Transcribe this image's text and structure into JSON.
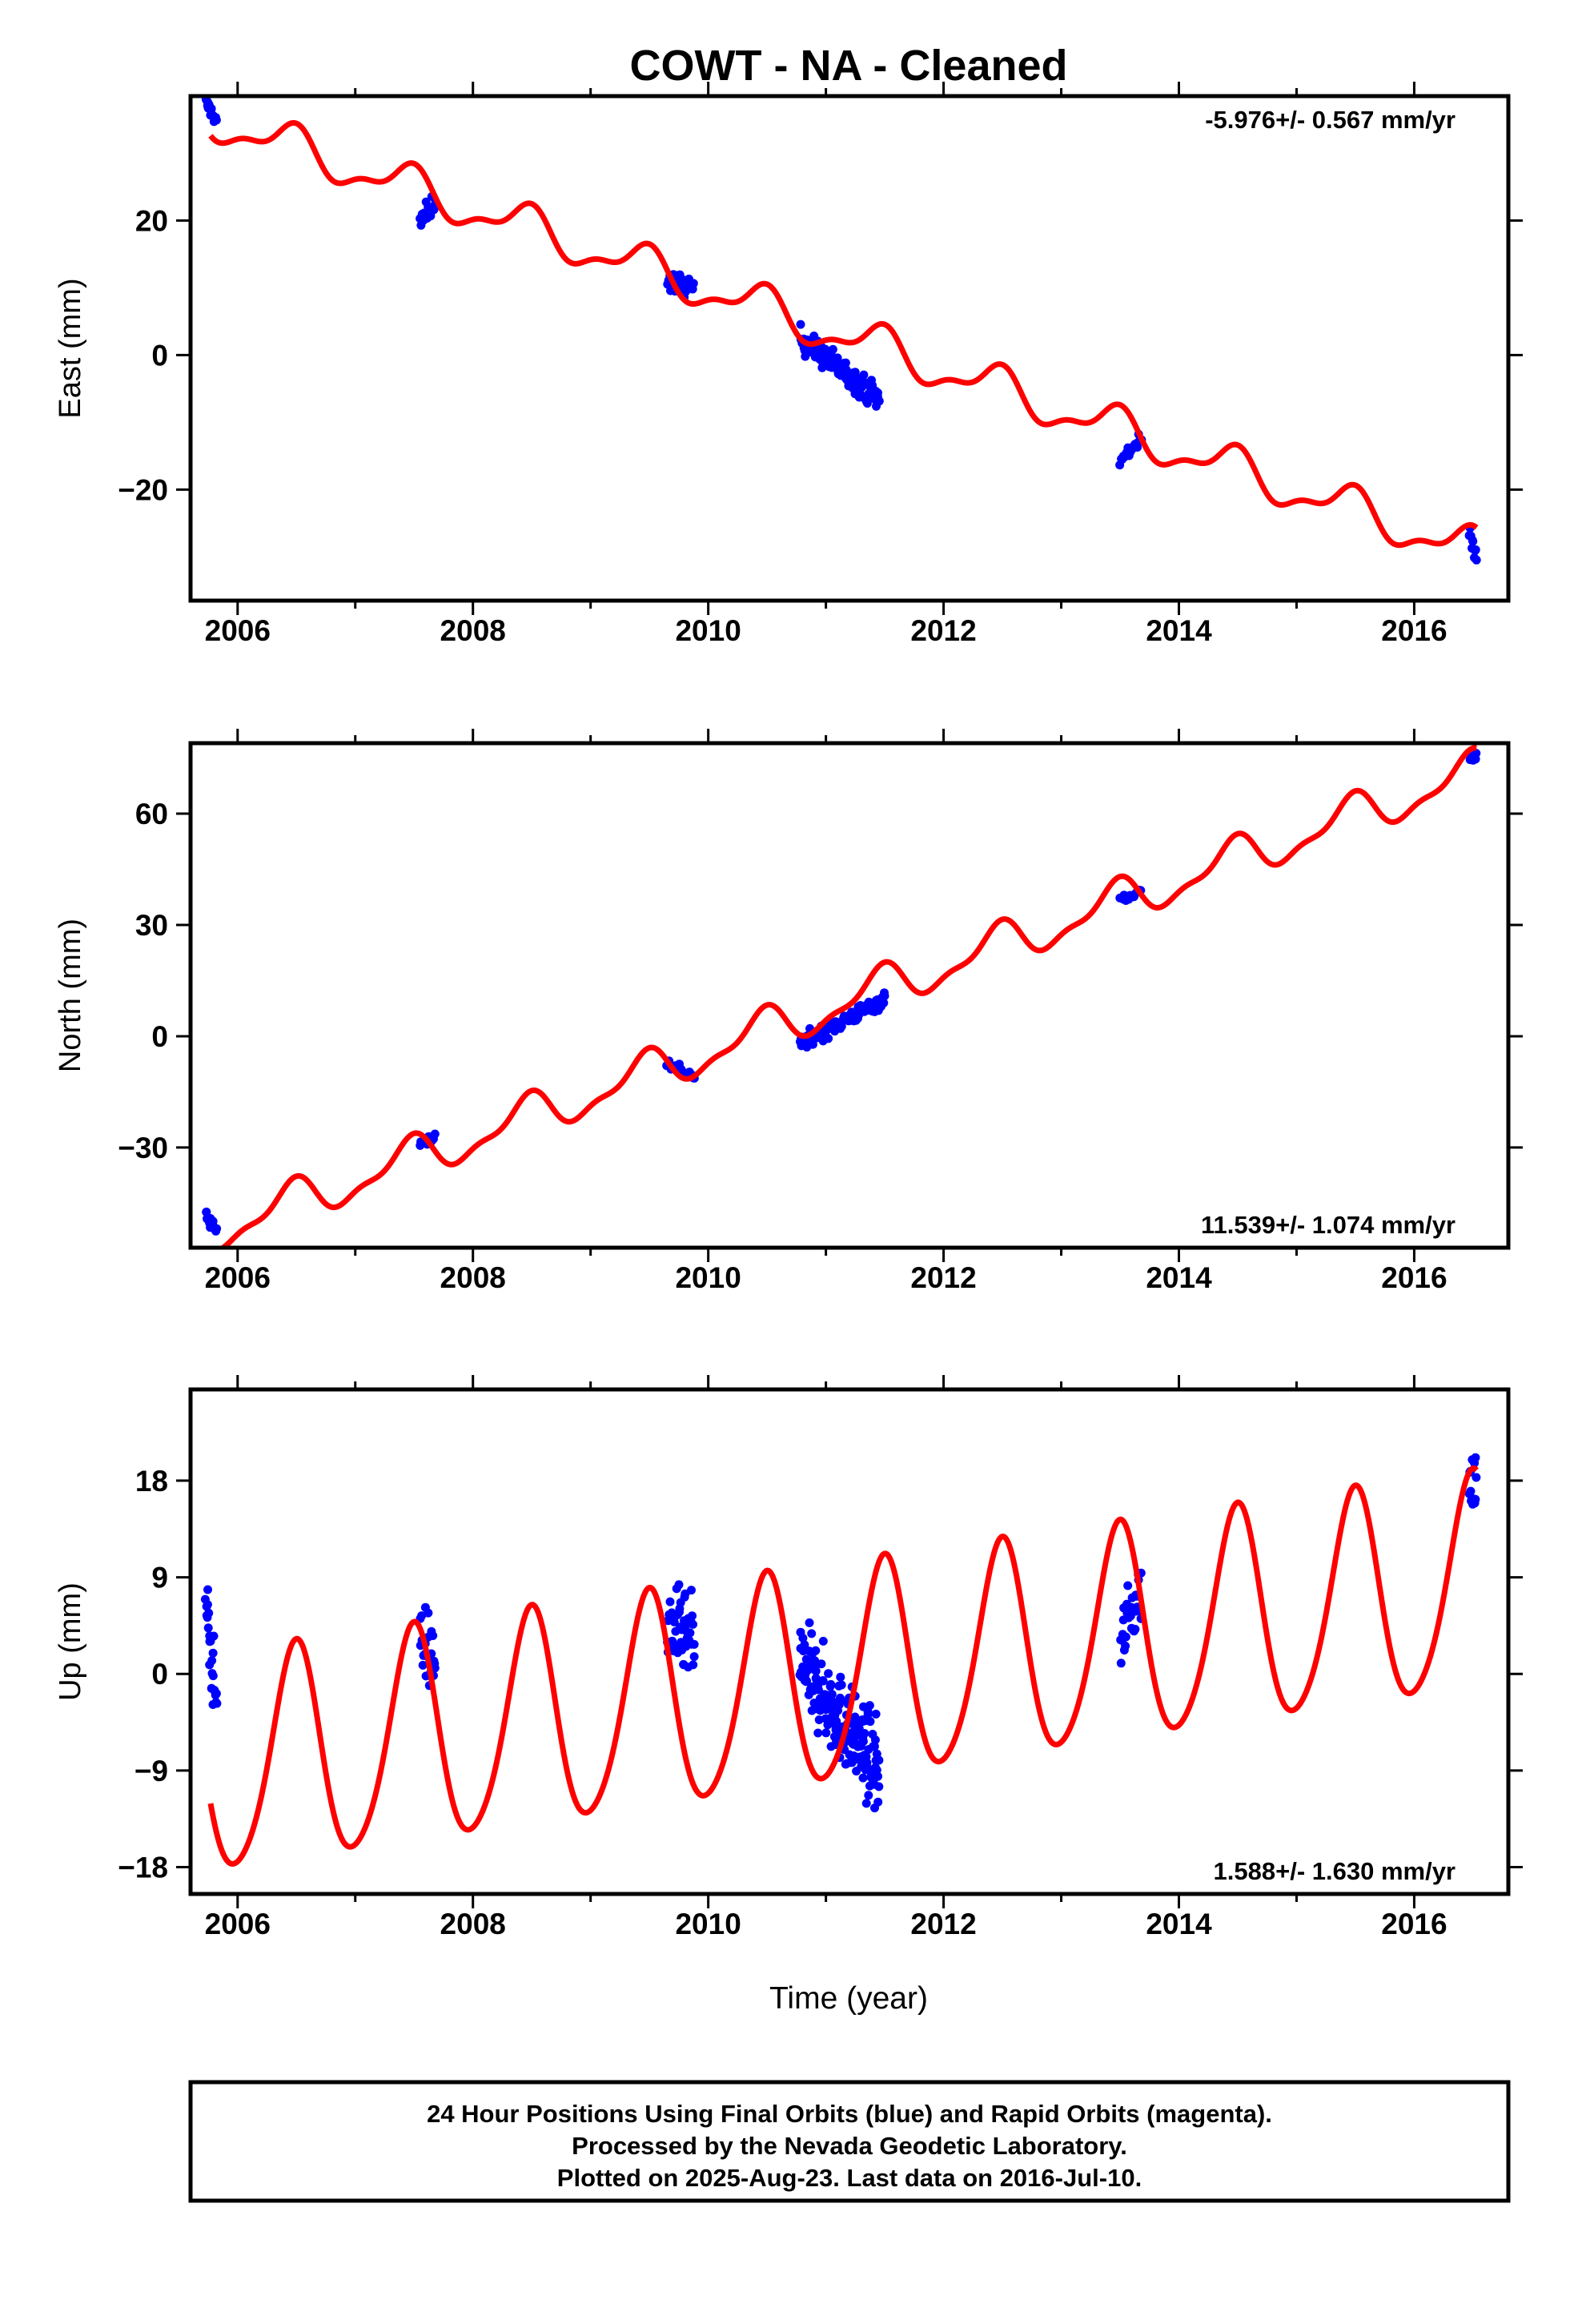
{
  "chart_data": {
    "type": "scatter",
    "title": "COWT  - NA - Cleaned",
    "xlabel": "Time (year)",
    "xlim": [
      2005.6,
      2016.8
    ],
    "x_ticks": [
      "2006",
      "2008",
      "2010",
      "2012",
      "2014",
      "2016"
    ],
    "series_legend": "24 Hour Positions Using Final Orbits (blue) and Rapid Orbits (magenta).",
    "colors": {
      "final_orbits": "#0000ff",
      "model_fit": "#ff0000"
    },
    "panels": [
      {
        "name": "east",
        "ylabel": "East (mm)",
        "ylim": [
          -36.5,
          38.5
        ],
        "y_ticks": [
          "−20",
          "0",
          "20"
        ],
        "rate_label": "-5.976+/- 0.567 mm/yr",
        "rate_position": "top-right",
        "model": {
          "rate": -5.976,
          "intercept": 35.0,
          "t0": 2005.77,
          "amp1": 2.8,
          "phase1": 0.2,
          "amp2": 1.2,
          "phase2": 0.9
        },
        "clusters": [
          {
            "t0": 2005.73,
            "t1": 2005.82,
            "y0": 37.5,
            "y1": 35.0,
            "spread": 1.0,
            "n": 16
          },
          {
            "t0": 2007.55,
            "t1": 2007.68,
            "y0": 19.5,
            "y1": 23.0,
            "spread": 1.6,
            "n": 18
          },
          {
            "t0": 2009.65,
            "t1": 2009.88,
            "y0": 11.0,
            "y1": 10.0,
            "spread": 1.6,
            "n": 30
          },
          {
            "t0": 2010.78,
            "t1": 2011.45,
            "y0": 2.5,
            "y1": -6.5,
            "spread": 1.8,
            "n": 130
          },
          {
            "t0": 2013.5,
            "t1": 2013.68,
            "y0": -16.0,
            "y1": -12.0,
            "spread": 1.3,
            "n": 20
          },
          {
            "t0": 2016.47,
            "t1": 2016.53,
            "y0": -27.0,
            "y1": -30.0,
            "spread": 1.5,
            "n": 10
          }
        ]
      },
      {
        "name": "north",
        "ylabel": "North (mm)",
        "ylim": [
          -57,
          79
        ],
        "y_ticks": [
          "−30",
          "0",
          "30",
          "60"
        ],
        "rate_label": "11.539+/- 1.074 mm/yr",
        "rate_position": "bottom-right",
        "model": {
          "rate": 11.539,
          "intercept": -53.0,
          "t0": 2005.77,
          "amp1": 5.2,
          "phase1": 0.2,
          "amp2": 2.0,
          "phase2": 0.9
        },
        "clusters": [
          {
            "t0": 2005.73,
            "t1": 2005.82,
            "y0": -48.0,
            "y1": -52.0,
            "spread": 1.5,
            "n": 14
          },
          {
            "t0": 2007.55,
            "t1": 2007.68,
            "y0": -29.0,
            "y1": -27.0,
            "spread": 1.5,
            "n": 12
          },
          {
            "t0": 2009.65,
            "t1": 2009.88,
            "y0": -7.0,
            "y1": -11.0,
            "spread": 1.6,
            "n": 25
          },
          {
            "t0": 2010.78,
            "t1": 2011.5,
            "y0": -2.0,
            "y1": 10.0,
            "spread": 2.0,
            "n": 120
          },
          {
            "t0": 2013.5,
            "t1": 2013.68,
            "y0": 37.0,
            "y1": 39.0,
            "spread": 1.3,
            "n": 15
          },
          {
            "t0": 2016.47,
            "t1": 2016.53,
            "y0": 74.0,
            "y1": 76.0,
            "spread": 1.2,
            "n": 8
          }
        ]
      },
      {
        "name": "up",
        "ylabel": "Up (mm)",
        "ylim": [
          -20.5,
          26.5
        ],
        "y_ticks": [
          "−18",
          "−9",
          "0",
          "9",
          "18"
        ],
        "rate_label": "1.588+/- 1.630 mm/yr",
        "rate_position": "bottom-right",
        "model": {
          "rate": 1.588,
          "intercept": -9.0,
          "t0": 2005.77,
          "amp1": 10.0,
          "phase1": 0.24,
          "amp2": 1.2,
          "phase2": 0.4
        },
        "clusters": [
          {
            "t0": 2005.73,
            "t1": 2005.82,
            "y0": 6.0,
            "y1": -2.5,
            "spread": 3.5,
            "n": 25
          },
          {
            "t0": 2007.55,
            "t1": 2007.68,
            "y0": 4.0,
            "y1": 0.5,
            "spread": 3.5,
            "n": 22
          },
          {
            "t0": 2009.65,
            "t1": 2009.88,
            "y0": 4.5,
            "y1": 3.0,
            "spread": 3.8,
            "n": 55
          },
          {
            "t0": 2010.78,
            "t1": 2011.45,
            "y0": 1.0,
            "y1": -9.0,
            "spread": 4.0,
            "n": 200
          },
          {
            "t0": 2013.5,
            "t1": 2013.68,
            "y0": 3.0,
            "y1": 8.0,
            "spread": 3.0,
            "n": 30
          },
          {
            "t0": 2016.47,
            "t1": 2016.53,
            "y0": 17.0,
            "y1": 18.0,
            "spread": 3.5,
            "n": 14
          }
        ]
      }
    ]
  },
  "footer": {
    "line1": "24 Hour Positions Using Final Orbits (blue) and Rapid Orbits (magenta).",
    "line2": "Processed by the Nevada Geodetic Laboratory.",
    "line3": "Plotted on 2025-Aug-23. Last data on 2016-Jul-10."
  }
}
